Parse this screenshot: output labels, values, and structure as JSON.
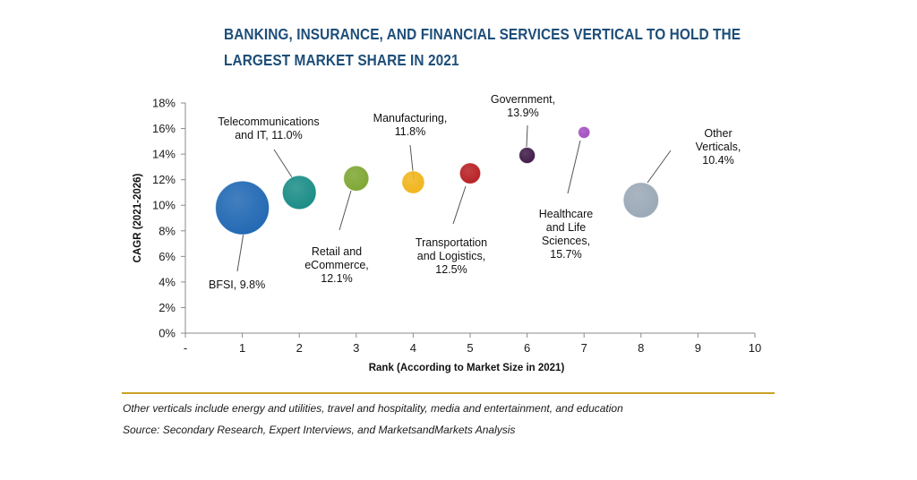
{
  "chart_data": {
    "type": "bubble",
    "title": [
      "BANKING, INSURANCE, AND FINANCIAL SERVICES VERTICAL TO HOLD THE",
      "LARGEST MARKET SHARE IN 2021"
    ],
    "xlabel": "Rank (According to Market Size in 2021)",
    "ylabel": "CAGR (2021-2026)",
    "xlim": [
      0,
      10
    ],
    "ylim": [
      0,
      18
    ],
    "x_tick_labels": [
      "-",
      "1",
      "2",
      "3",
      "4",
      "5",
      "6",
      "7",
      "8",
      "9",
      "10"
    ],
    "y_tick_labels": [
      "0%",
      "2%",
      "4%",
      "6%",
      "8%",
      "10%",
      "12%",
      "14%",
      "16%",
      "18%"
    ],
    "grid": false,
    "points": [
      {
        "x": 1,
        "y": 9.8,
        "relative_size": 1.0,
        "color": "#2168b3",
        "label": [
          "BFSI, 9.8%"
        ]
      },
      {
        "x": 2,
        "y": 11.0,
        "relative_size": 0.63,
        "color": "#1a8c86",
        "label": [
          "Telecommunications",
          "and IT, 11.0%"
        ]
      },
      {
        "x": 3,
        "y": 12.1,
        "relative_size": 0.47,
        "color": "#7ea632",
        "label": [
          "Retail and",
          "eCommerce,",
          "12.1%"
        ]
      },
      {
        "x": 4,
        "y": 11.8,
        "relative_size": 0.42,
        "color": "#f0b51b",
        "label": [
          "Manufacturing,",
          "11.8%"
        ]
      },
      {
        "x": 5,
        "y": 12.5,
        "relative_size": 0.39,
        "color": "#b71f23",
        "label": [
          "Transportation",
          "and Logistics,",
          "12.5%"
        ]
      },
      {
        "x": 6,
        "y": 13.9,
        "relative_size": 0.3,
        "color": "#3e1a46",
        "label": [
          "Government,",
          "13.9%"
        ]
      },
      {
        "x": 7,
        "y": 15.7,
        "relative_size": 0.22,
        "color": "#a24fc0",
        "label": [
          "Healthcare",
          "and Life",
          "Sciences,",
          "15.7%"
        ]
      },
      {
        "x": 8,
        "y": 10.4,
        "relative_size": 0.66,
        "color": "#9aa8b6",
        "label": [
          "Other",
          "Verticals,",
          "10.4%"
        ]
      }
    ]
  },
  "footnotes": {
    "note": "Other verticals include energy and utilities, travel and hospitality, media and entertainment, and education",
    "source": "Source: Secondary Research, Expert Interviews, and MarketsandMarkets Analysis"
  }
}
